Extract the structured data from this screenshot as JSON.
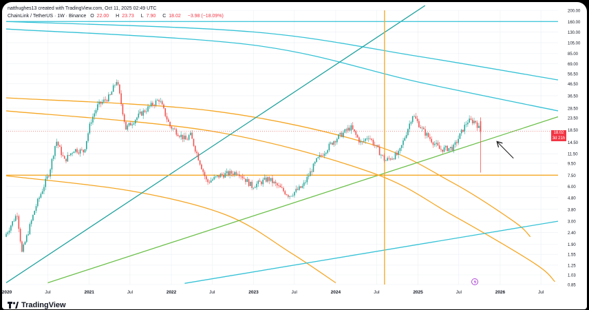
{
  "header": {
    "author": "natthughes13 created with TradingView.com, Oct 11, 2025 02:49 UTC",
    "symbol": "ChainLink / TetherUS · 1W · Binance",
    "ohlc": {
      "o_label": "O",
      "o": "22.00",
      "h_label": "H",
      "h": "23.73",
      "l_label": "L",
      "l": "7.90",
      "c_label": "C",
      "c": "18.02",
      "change": "−3.98 (−18.09%)"
    }
  },
  "branding": {
    "logo_text": "TradingView"
  },
  "price_badge": {
    "price": "18.02",
    "countdown": "3d 21h"
  },
  "colors": {
    "up": "#26a69a",
    "down": "#ef5350",
    "orange": "#f5a623",
    "green": "#6cc04a",
    "teal": "#22a39f",
    "cyan": "#35c2d6",
    "grid": "#eceff3"
  },
  "chart_data": {
    "type": "candlestick",
    "yscale": "log",
    "ylim": [
      0.85,
      200
    ],
    "yticks": [
      200.0,
      160.0,
      130.0,
      105.0,
      85.0,
      69.0,
      56.5,
      46.5,
      36.5,
      28.5,
      23.5,
      18.5,
      14.5,
      11.5,
      9.5,
      7.5,
      6.0,
      4.8,
      3.8,
      3.0,
      2.4,
      1.9,
      1.55,
      1.25,
      1.03,
      0.85
    ],
    "ytick_labels": [
      "200.00",
      "160.00",
      "130.00",
      "105.00",
      "85.00",
      "69.00",
      "56.50",
      "46.50",
      "36.50",
      "28.50",
      "23.50",
      "18.50",
      "14.50",
      "11.50",
      "9.50",
      "7.50",
      "6.00",
      "4.80",
      "3.80",
      "3.00",
      "2.40",
      "1.90",
      "1.55",
      "1.25",
      "1.03",
      "0.85"
    ],
    "xticks": [
      {
        "label": "2020",
        "date": "2020-01-01"
      },
      {
        "label": "Jul",
        "date": "2020-07-01"
      },
      {
        "label": "2021",
        "date": "2021-01-01"
      },
      {
        "label": "Jul",
        "date": "2021-07-01"
      },
      {
        "label": "2022",
        "date": "2022-01-01"
      },
      {
        "label": "Jul",
        "date": "2022-07-01"
      },
      {
        "label": "2023",
        "date": "2023-01-01"
      },
      {
        "label": "Jul",
        "date": "2023-07-01"
      },
      {
        "label": "2024",
        "date": "2024-01-01"
      },
      {
        "label": "Jul",
        "date": "2024-07-01"
      },
      {
        "label": "2025",
        "date": "2025-01-01"
      },
      {
        "label": "Jul",
        "date": "2025-07-01"
      },
      {
        "label": "2026",
        "date": "2026-01-01"
      },
      {
        "label": "Jul",
        "date": "2026-07-01"
      }
    ],
    "xlim": [
      "2019-12-29",
      "2026-09-15"
    ],
    "price_path": [
      {
        "date": "2019-12-29",
        "price": 2.2
      },
      {
        "date": "2020-02-23",
        "price": 3.5
      },
      {
        "date": "2020-03-15",
        "price": 1.6
      },
      {
        "date": "2020-05-15",
        "price": 4.0
      },
      {
        "date": "2020-07-15",
        "price": 8.0
      },
      {
        "date": "2020-08-14",
        "price": 15.0
      },
      {
        "date": "2020-09-20",
        "price": 10.0
      },
      {
        "date": "2020-11-01",
        "price": 12.5
      },
      {
        "date": "2020-12-15",
        "price": 12.0
      },
      {
        "date": "2021-01-15",
        "price": 22.0
      },
      {
        "date": "2021-02-15",
        "price": 30.0
      },
      {
        "date": "2021-04-10",
        "price": 36.0
      },
      {
        "date": "2021-05-10",
        "price": 50.0
      },
      {
        "date": "2021-06-20",
        "price": 19.0
      },
      {
        "date": "2021-08-20",
        "price": 25.0
      },
      {
        "date": "2021-10-10",
        "price": 30.0
      },
      {
        "date": "2021-11-15",
        "price": 34.0
      },
      {
        "date": "2022-01-01",
        "price": 20.0
      },
      {
        "date": "2022-03-15",
        "price": 15.0
      },
      {
        "date": "2022-04-01",
        "price": 17.0
      },
      {
        "date": "2022-06-15",
        "price": 6.5
      },
      {
        "date": "2022-08-15",
        "price": 7.5
      },
      {
        "date": "2022-11-01",
        "price": 8.0
      },
      {
        "date": "2023-01-01",
        "price": 6.0
      },
      {
        "date": "2023-03-15",
        "price": 7.0
      },
      {
        "date": "2023-06-15",
        "price": 5.0
      },
      {
        "date": "2023-08-15",
        "price": 6.0
      },
      {
        "date": "2023-10-15",
        "price": 10.0
      },
      {
        "date": "2024-01-01",
        "price": 15.0
      },
      {
        "date": "2024-03-15",
        "price": 19.5
      },
      {
        "date": "2024-05-01",
        "price": 14.0
      },
      {
        "date": "2024-06-01",
        "price": 16.5
      },
      {
        "date": "2024-08-15",
        "price": 10.0
      },
      {
        "date": "2024-10-15",
        "price": 11.5
      },
      {
        "date": "2024-12-15",
        "price": 25.0
      },
      {
        "date": "2025-02-01",
        "price": 18.0
      },
      {
        "date": "2025-04-15",
        "price": 12.5
      },
      {
        "date": "2025-06-15",
        "price": 13.0
      },
      {
        "date": "2025-08-15",
        "price": 22.0
      },
      {
        "date": "2025-09-20",
        "price": 22.0
      },
      {
        "date": "2025-10-11",
        "price": 18.02
      }
    ],
    "last_candle": {
      "date": "2025-10-06",
      "open": 22.0,
      "high": 23.73,
      "low": 7.9,
      "close": 18.02
    },
    "horizontal_levels": [
      {
        "price": 7.5,
        "color": "orange"
      },
      {
        "price": 160,
        "color": "cyan"
      },
      {
        "price": 18.02,
        "color": "down",
        "style": "dotted"
      }
    ],
    "vertical_lines": [
      {
        "date": "2024-08-05",
        "color": "orange"
      }
    ],
    "trend_lines": [
      {
        "color": "teal",
        "points": [
          {
            "date": "2019-12-29",
            "price": 0.88
          },
          {
            "date": "2025-02-01",
            "price": 220
          }
        ]
      },
      {
        "color": "green",
        "points": [
          {
            "date": "2020-07-01",
            "price": 0.88
          },
          {
            "date": "2026-09-15",
            "price": 24
          }
        ]
      },
      {
        "color": "cyan",
        "points": [
          {
            "date": "2022-03-01",
            "price": 0.87
          },
          {
            "date": "2026-09-15",
            "price": 3.0
          }
        ]
      }
    ],
    "arcs": [
      {
        "color": "orange",
        "points": [
          {
            "date": "2019-12-29",
            "price": 35
          },
          {
            "date": "2022-07-01",
            "price": 27
          },
          {
            "date": "2024-06-01",
            "price": 14
          },
          {
            "date": "2025-06-01",
            "price": 6.5
          },
          {
            "date": "2026-03-01",
            "price": 3.0
          },
          {
            "date": "2026-05-15",
            "price": 2.2
          }
        ]
      },
      {
        "color": "orange",
        "points": [
          {
            "date": "2019-12-29",
            "price": 27
          },
          {
            "date": "2022-07-01",
            "price": 18
          },
          {
            "date": "2024-06-01",
            "price": 8.0
          },
          {
            "date": "2025-06-01",
            "price": 3.4
          },
          {
            "date": "2026-06-01",
            "price": 1.3
          },
          {
            "date": "2026-09-01",
            "price": 0.9
          }
        ]
      },
      {
        "color": "orange",
        "points": [
          {
            "date": "2019-12-29",
            "price": 7.4
          },
          {
            "date": "2021-07-01",
            "price": 5.5
          },
          {
            "date": "2022-09-01",
            "price": 3.4
          },
          {
            "date": "2023-06-15",
            "price": 1.6
          },
          {
            "date": "2024-01-01",
            "price": 0.88
          }
        ]
      },
      {
        "color": "cyan",
        "points": [
          {
            "date": "2019-12-29",
            "price": 160
          },
          {
            "date": "2023-01-01",
            "price": 130
          },
          {
            "date": "2025-01-01",
            "price": 80
          },
          {
            "date": "2026-09-15",
            "price": 50
          }
        ]
      },
      {
        "color": "cyan",
        "points": [
          {
            "date": "2019-12-29",
            "price": 138
          },
          {
            "date": "2023-01-01",
            "price": 100
          },
          {
            "date": "2025-01-01",
            "price": 48
          },
          {
            "date": "2026-09-15",
            "price": 27
          }
        ]
      }
    ],
    "annotations": [
      {
        "type": "arrow",
        "from": {
          "date": "2026-03-01",
          "price": 10.5
        },
        "to": {
          "date": "2025-12-20",
          "price": 14.5
        }
      }
    ]
  }
}
